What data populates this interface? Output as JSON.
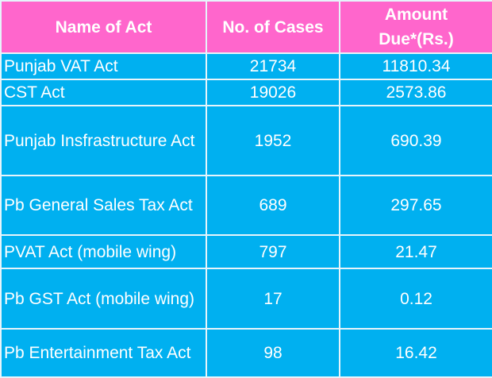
{
  "table": {
    "headers": [
      "Name of Act",
      "No. of Cases",
      "Amount Due*(Rs.)"
    ],
    "rows": [
      {
        "name": "Punjab VAT Act",
        "cases": "21734",
        "amount": "11810.34"
      },
      {
        "name": "CST Act",
        "cases": "19026",
        "amount": "2573.86"
      },
      {
        "name": "Punjab Insfrastructure Act",
        "cases": "1952",
        "amount": "690.39"
      },
      {
        "name": "Pb General Sales Tax Act",
        "cases": "689",
        "amount": "297.65"
      },
      {
        "name": "PVAT Act (mobile wing)",
        "cases": "797",
        "amount": "21.47"
      },
      {
        "name": "Pb GST Act (mobile wing)",
        "cases": "17",
        "amount": "0.12"
      },
      {
        "name": "Pb Entertainment Tax Act",
        "cases": "98",
        "amount": "16.42"
      }
    ]
  },
  "colors": {
    "header_bg": "#FF66CC",
    "body_bg": "#00B0F0",
    "text": "#FFFFFF"
  }
}
